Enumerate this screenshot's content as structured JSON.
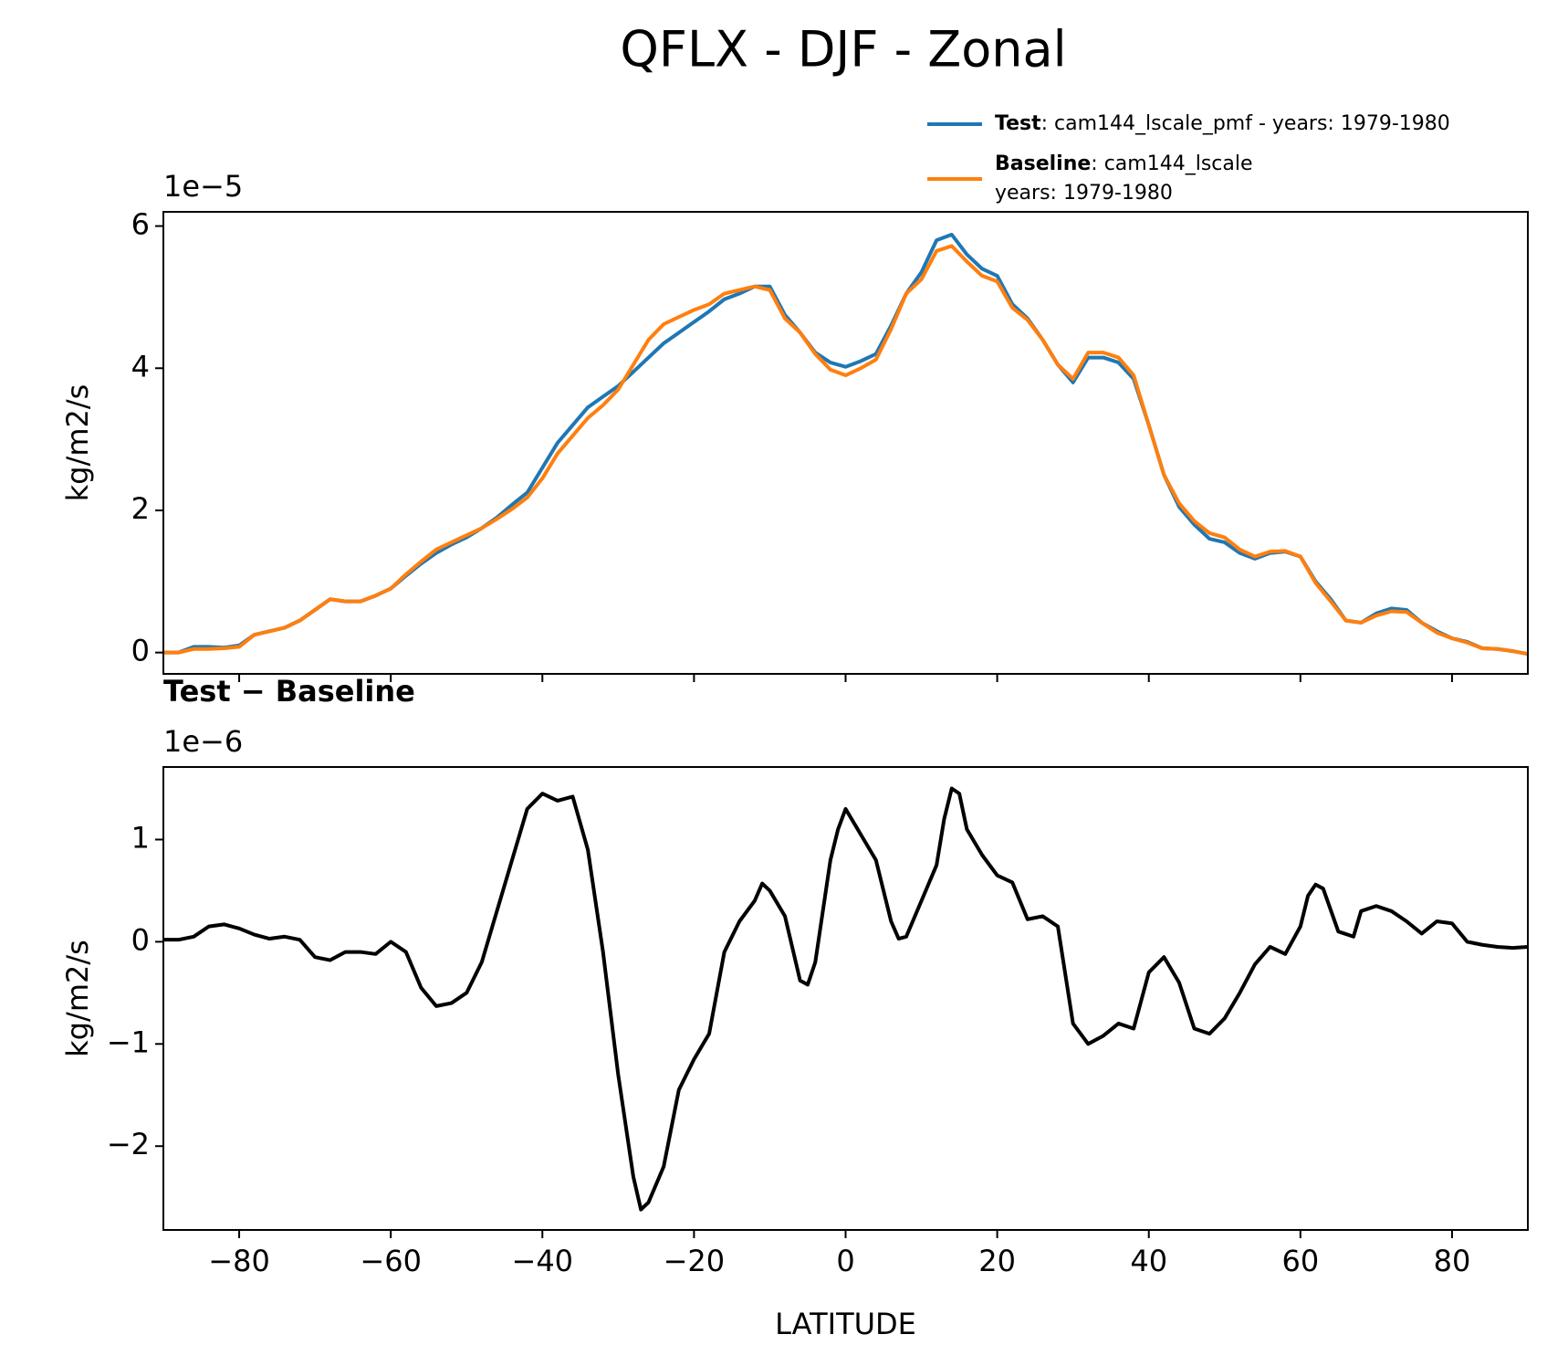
{
  "title": "QFLX - DJF - Zonal",
  "chart_data": [
    {
      "type": "line",
      "ylabel": "kg/m2/s",
      "offset_label": "1e−5",
      "legend": "upper right",
      "x": [
        -90,
        -88,
        -86,
        -84,
        -82,
        -80,
        -78,
        -76,
        -74,
        -72,
        -70,
        -68,
        -66,
        -64,
        -62,
        -60,
        -58,
        -56,
        -54,
        -52,
        -50,
        -48,
        -46,
        -44,
        -42,
        -40,
        -38,
        -36,
        -34,
        -32,
        -30,
        -28,
        -26,
        -24,
        -22,
        -20,
        -18,
        -16,
        -14,
        -12,
        -10,
        -8,
        -6,
        -4,
        -2,
        0,
        2,
        4,
        6,
        8,
        10,
        12,
        14,
        16,
        18,
        20,
        22,
        24,
        26,
        28,
        30,
        32,
        34,
        36,
        38,
        40,
        42,
        44,
        46,
        48,
        50,
        52,
        54,
        56,
        58,
        60,
        62,
        64,
        66,
        68,
        70,
        72,
        74,
        76,
        78,
        80,
        82,
        84,
        86,
        88,
        90
      ],
      "series": [
        {
          "name": "Test",
          "label_lines": [
            ": cam144_lscale_pmf - years: 1979-1980"
          ],
          "color": "#1f77b4",
          "values": [
            0.0,
            0.0,
            0.08,
            0.08,
            0.07,
            0.1,
            0.25,
            0.3,
            0.35,
            0.45,
            0.6,
            0.75,
            0.72,
            0.72,
            0.8,
            0.9,
            1.08,
            1.25,
            1.4,
            1.52,
            1.62,
            1.75,
            1.9,
            2.08,
            2.25,
            2.6,
            2.95,
            3.2,
            3.45,
            3.6,
            3.75,
            3.95,
            4.15,
            4.35,
            4.5,
            4.65,
            4.8,
            4.97,
            5.05,
            5.15,
            5.15,
            4.75,
            4.5,
            4.22,
            4.08,
            4.02,
            4.1,
            4.2,
            4.6,
            5.05,
            5.35,
            5.8,
            5.88,
            5.6,
            5.4,
            5.3,
            4.9,
            4.7,
            4.4,
            4.05,
            3.8,
            4.15,
            4.15,
            4.08,
            3.85,
            3.2,
            2.5,
            2.05,
            1.8,
            1.6,
            1.55,
            1.4,
            1.32,
            1.4,
            1.42,
            1.35,
            1.0,
            0.75,
            0.45,
            0.42,
            0.55,
            0.62,
            0.6,
            0.42,
            0.3,
            0.2,
            0.15,
            0.06,
            0.05,
            0.02,
            -0.02
          ]
        },
        {
          "name": "Baseline",
          "label_lines": [
            ": cam144_lscale",
            "years: 1979-1980"
          ],
          "color": "#ff7f0e",
          "values": [
            0.0,
            0.0,
            0.05,
            0.05,
            0.06,
            0.08,
            0.25,
            0.3,
            0.35,
            0.45,
            0.6,
            0.75,
            0.72,
            0.72,
            0.8,
            0.9,
            1.1,
            1.28,
            1.45,
            1.55,
            1.65,
            1.75,
            1.88,
            2.02,
            2.18,
            2.45,
            2.8,
            3.05,
            3.3,
            3.48,
            3.7,
            4.05,
            4.4,
            4.62,
            4.72,
            4.82,
            4.9,
            5.05,
            5.1,
            5.15,
            5.1,
            4.7,
            4.5,
            4.2,
            3.98,
            3.9,
            4.0,
            4.12,
            4.55,
            5.05,
            5.25,
            5.65,
            5.72,
            5.5,
            5.3,
            5.22,
            4.85,
            4.68,
            4.4,
            4.05,
            3.85,
            4.22,
            4.22,
            4.15,
            3.9,
            3.2,
            2.5,
            2.1,
            1.85,
            1.68,
            1.62,
            1.45,
            1.35,
            1.42,
            1.43,
            1.35,
            0.98,
            0.72,
            0.45,
            0.42,
            0.52,
            0.58,
            0.57,
            0.42,
            0.28,
            0.2,
            0.14,
            0.06,
            0.05,
            0.02,
            -0.02
          ]
        }
      ],
      "xlim": [
        -90,
        90
      ],
      "xticks": [
        -80,
        -60,
        -40,
        -20,
        0,
        20,
        40,
        60,
        80
      ],
      "ylim": [
        -0.3,
        6.2
      ],
      "yticks": [
        0,
        2,
        4,
        6
      ]
    },
    {
      "type": "line",
      "title": "Test − Baseline",
      "ylabel": "kg/m2/s",
      "xlabel": "LATITUDE",
      "offset_label": "1e−6",
      "x": [
        -90,
        -88,
        -86,
        -84,
        -82,
        -80,
        -78,
        -76,
        -74,
        -72,
        -70,
        -68,
        -66,
        -64,
        -62,
        -60,
        -58,
        -56,
        -54,
        -52,
        -50,
        -48,
        -46,
        -44,
        -42,
        -40,
        -38,
        -36,
        -34,
        -32,
        -30,
        -28,
        -27,
        -26,
        -24,
        -22,
        -20,
        -18,
        -16,
        -14,
        -12,
        -11,
        -10,
        -8,
        -6,
        -5,
        -4,
        -2,
        -1,
        0,
        2,
        4,
        6,
        7,
        8,
        10,
        12,
        13,
        14,
        15,
        16,
        18,
        20,
        22,
        24,
        26,
        28,
        30,
        32,
        34,
        36,
        38,
        40,
        42,
        44,
        46,
        48,
        50,
        52,
        54,
        56,
        58,
        60,
        61,
        62,
        63,
        65,
        67,
        68,
        70,
        72,
        74,
        76,
        78,
        80,
        82,
        84,
        86,
        88,
        90
      ],
      "series": [
        {
          "name": "Test − Baseline",
          "color": "#000000",
          "values": [
            0.02,
            0.02,
            0.05,
            0.15,
            0.17,
            0.13,
            0.07,
            0.03,
            0.05,
            0.02,
            -0.15,
            -0.18,
            -0.1,
            -0.1,
            -0.12,
            0.0,
            -0.1,
            -0.45,
            -0.63,
            -0.6,
            -0.5,
            -0.2,
            0.3,
            0.8,
            1.3,
            1.45,
            1.38,
            1.42,
            0.9,
            -0.1,
            -1.3,
            -2.3,
            -2.62,
            -2.55,
            -2.2,
            -1.45,
            -1.15,
            -0.9,
            -0.1,
            0.2,
            0.4,
            0.57,
            0.5,
            0.25,
            -0.38,
            -0.42,
            -0.2,
            0.8,
            1.1,
            1.3,
            1.05,
            0.8,
            0.2,
            0.03,
            0.05,
            0.4,
            0.75,
            1.2,
            1.5,
            1.45,
            1.1,
            0.85,
            0.65,
            0.58,
            0.22,
            0.25,
            0.15,
            -0.8,
            -1.0,
            -0.92,
            -0.8,
            -0.85,
            -0.3,
            -0.15,
            -0.4,
            -0.85,
            -0.9,
            -0.75,
            -0.5,
            -0.22,
            -0.05,
            -0.12,
            0.15,
            0.45,
            0.56,
            0.52,
            0.1,
            0.05,
            0.3,
            0.35,
            0.3,
            0.2,
            0.08,
            0.2,
            0.18,
            0.0,
            -0.03,
            -0.05,
            -0.06,
            -0.05
          ]
        }
      ],
      "xlim": [
        -90,
        90
      ],
      "xticks": [
        {
          "value": -80,
          "label": "−80"
        },
        {
          "value": -60,
          "label": "−60"
        },
        {
          "value": -40,
          "label": "−40"
        },
        {
          "value": -20,
          "label": "−20"
        },
        0,
        20,
        40,
        60,
        80
      ],
      "ylim": [
        -2.82,
        1.71
      ],
      "yticks": [
        {
          "value": -2,
          "label": "−2"
        },
        {
          "value": -1,
          "label": "−1"
        },
        0,
        1
      ]
    }
  ]
}
